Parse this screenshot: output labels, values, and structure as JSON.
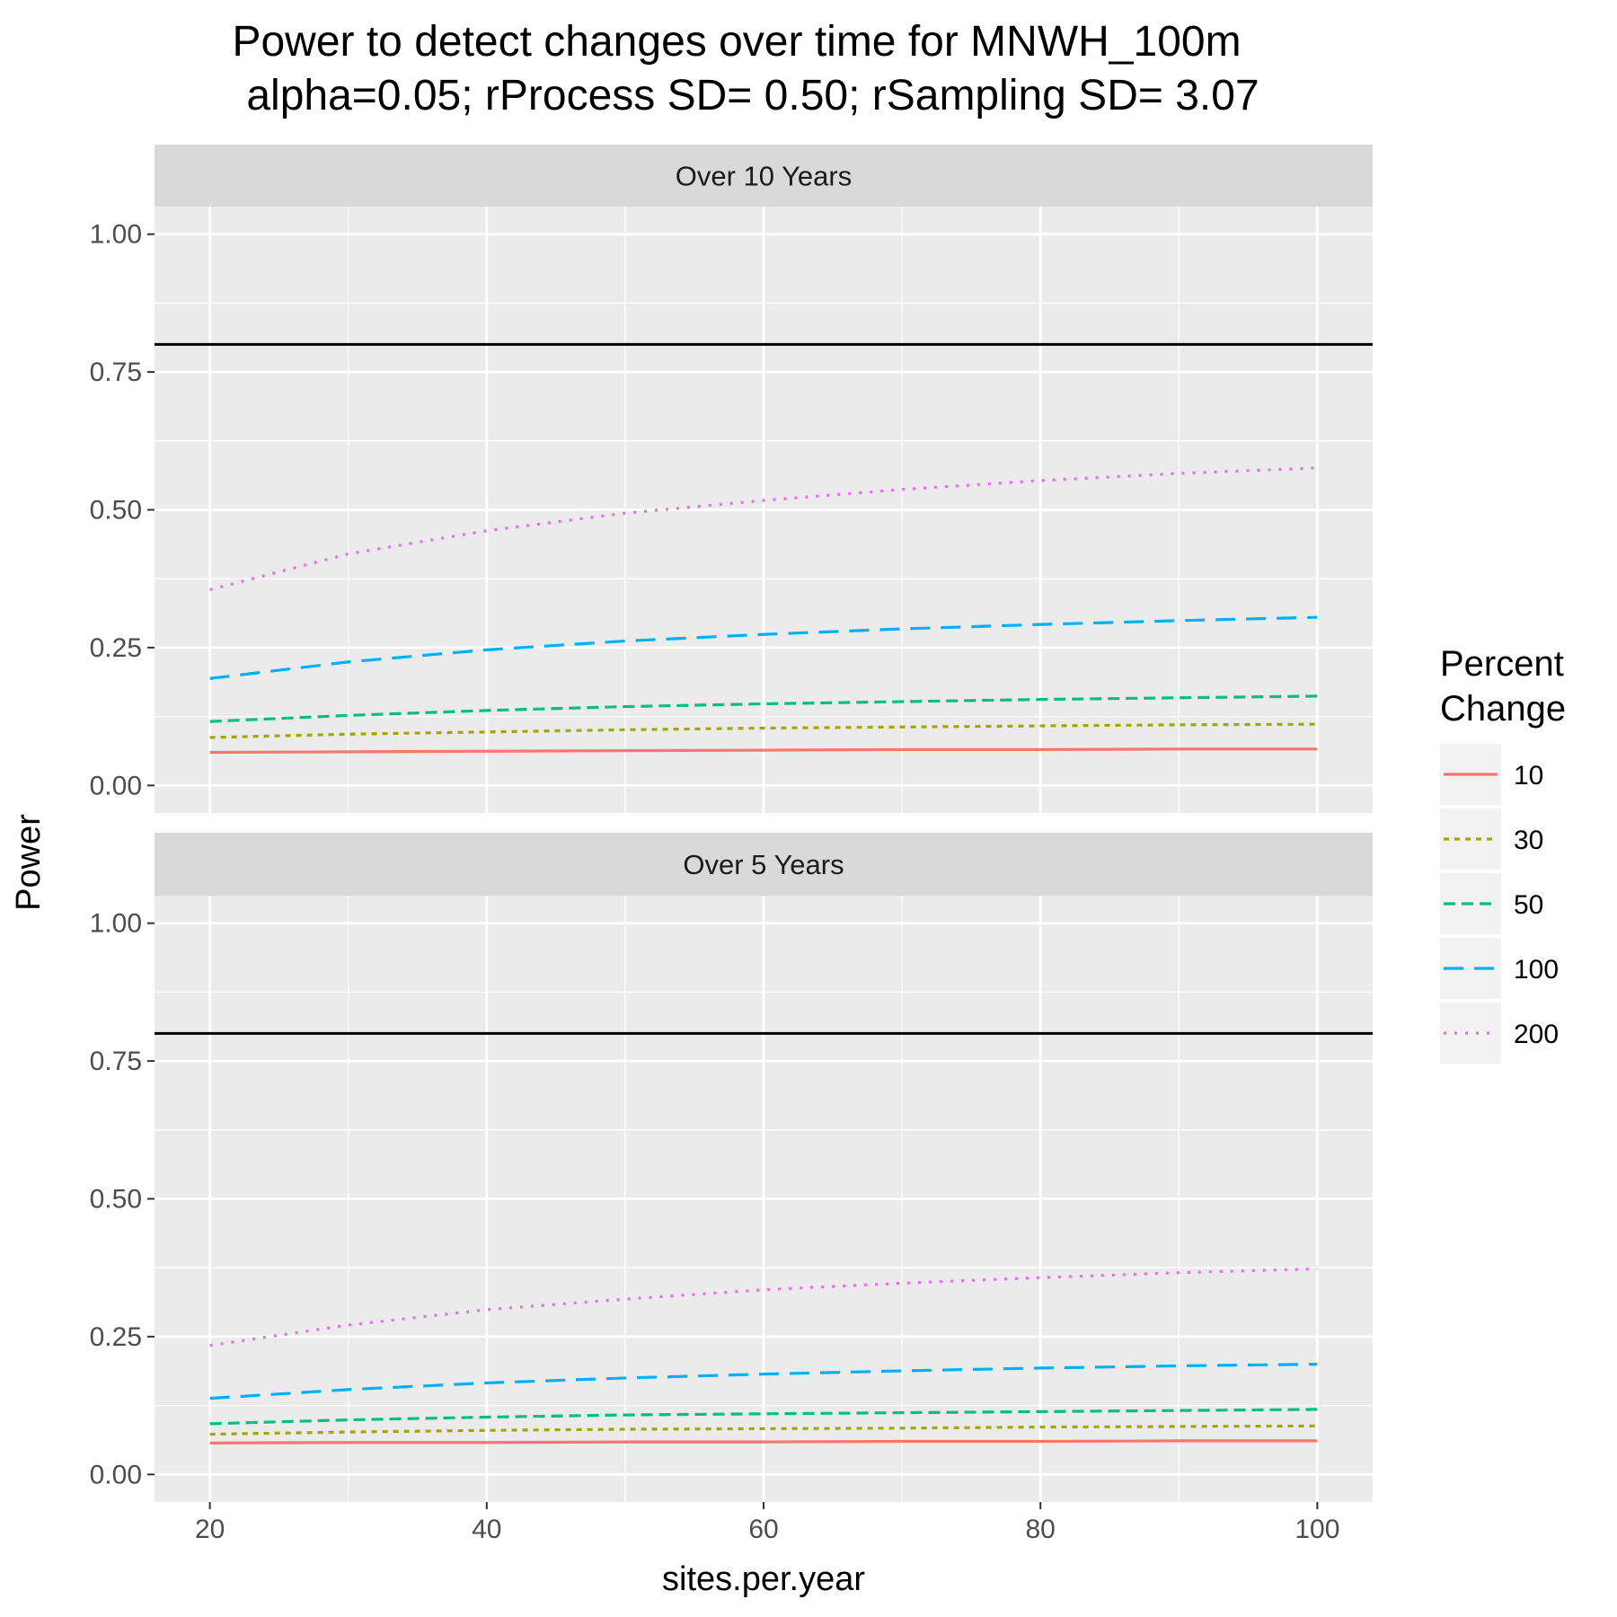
{
  "chart_data": {
    "type": "line",
    "title": "Power to detect changes over time for MNWH_100m",
    "subtitle": "alpha=0.05; rProcess SD= 0.50; rSampling SD= 3.07",
    "xlabel": "sites.per.year",
    "ylabel": "Power",
    "xlim": [
      16,
      104
    ],
    "ylim": [
      -0.05,
      1.05
    ],
    "x_ticks": [
      20,
      40,
      60,
      80,
      100
    ],
    "y_ticks": [
      0.0,
      0.25,
      0.5,
      0.75,
      1.0
    ],
    "y_tick_labels": [
      "0.00",
      "0.25",
      "0.50",
      "0.75",
      "1.00"
    ],
    "grid": true,
    "reference_line": {
      "y": 0.8,
      "color": "#000000"
    },
    "legend": {
      "title_lines": [
        "Percent",
        "Change"
      ],
      "placement": "right"
    },
    "x": [
      20,
      30,
      40,
      50,
      60,
      70,
      80,
      90,
      100
    ],
    "panels": [
      {
        "label": "Over 10 Years",
        "series": [
          {
            "name": "10",
            "color": "#F8766D",
            "dash": "solid",
            "values": [
              0.06,
              0.061,
              0.062,
              0.063,
              0.064,
              0.065,
              0.065,
              0.066,
              0.066
            ]
          },
          {
            "name": "30",
            "color": "#A3A500",
            "dash": "short-dash",
            "values": [
              0.087,
              0.093,
              0.097,
              0.101,
              0.104,
              0.106,
              0.108,
              0.11,
              0.111
            ]
          },
          {
            "name": "50",
            "color": "#00BF7D",
            "dash": "dash",
            "values": [
              0.116,
              0.127,
              0.136,
              0.143,
              0.148,
              0.152,
              0.156,
              0.159,
              0.162
            ]
          },
          {
            "name": "100",
            "color": "#00B0F6",
            "dash": "long-dash",
            "values": [
              0.194,
              0.224,
              0.246,
              0.262,
              0.274,
              0.284,
              0.292,
              0.299,
              0.305
            ]
          },
          {
            "name": "200",
            "color": "#E76BF3",
            "dash": "dotted",
            "values": [
              0.355,
              0.42,
              0.462,
              0.494,
              0.517,
              0.537,
              0.553,
              0.566,
              0.576
            ]
          }
        ]
      },
      {
        "label": "Over 5 Years",
        "series": [
          {
            "name": "10",
            "color": "#F8766D",
            "dash": "solid",
            "values": [
              0.057,
              0.058,
              0.058,
              0.059,
              0.059,
              0.06,
              0.06,
              0.061,
              0.061
            ]
          },
          {
            "name": "30",
            "color": "#A3A500",
            "dash": "short-dash",
            "values": [
              0.073,
              0.077,
              0.08,
              0.082,
              0.083,
              0.084,
              0.086,
              0.087,
              0.088
            ]
          },
          {
            "name": "50",
            "color": "#00BF7D",
            "dash": "dash",
            "values": [
              0.092,
              0.099,
              0.104,
              0.108,
              0.11,
              0.112,
              0.114,
              0.116,
              0.118
            ]
          },
          {
            "name": "100",
            "color": "#00B0F6",
            "dash": "long-dash",
            "values": [
              0.138,
              0.154,
              0.166,
              0.175,
              0.182,
              0.188,
              0.193,
              0.197,
              0.2
            ]
          },
          {
            "name": "200",
            "color": "#E76BF3",
            "dash": "dotted",
            "values": [
              0.234,
              0.271,
              0.299,
              0.318,
              0.335,
              0.347,
              0.357,
              0.366,
              0.373
            ]
          }
        ]
      }
    ]
  }
}
